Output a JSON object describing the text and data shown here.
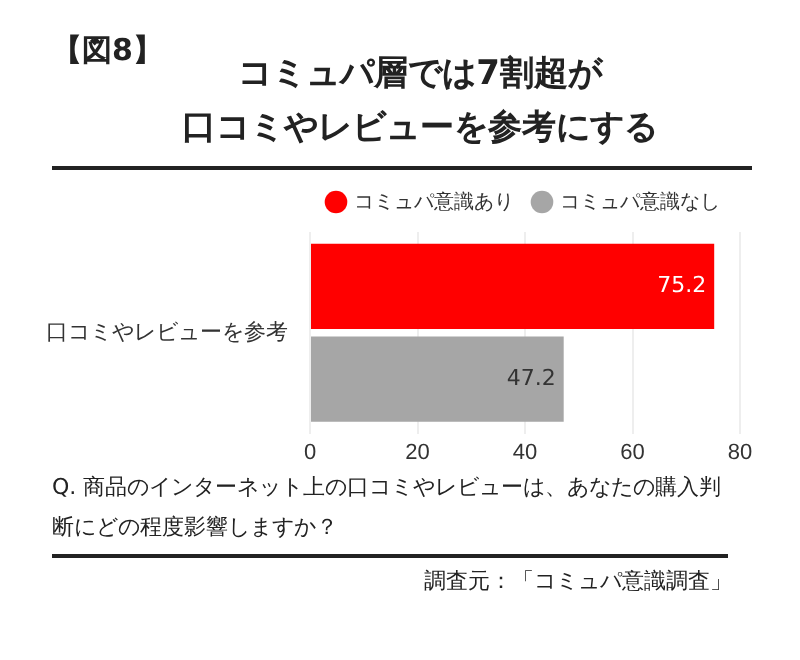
{
  "chart_data": {
    "type": "bar",
    "orientation": "horizontal",
    "title": "コミュパ層では7割超が",
    "subtitle": "口コミやレビューを参考にする",
    "categories": [
      "口コミやレビューを参考"
    ],
    "series": [
      {
        "name": "コミュパ意識あり",
        "color": "#ff0000",
        "values": [
          75.2
        ]
      },
      {
        "name": "コミュパ意識なし",
        "color": "#a6a6a6",
        "values": [
          47.2
        ]
      }
    ],
    "xlim": [
      0,
      80
    ],
    "xticks": [
      0,
      20,
      40,
      60,
      80
    ],
    "grid": "x",
    "legend": "top right",
    "data_labels": true,
    "annotations": [
      "【図8】",
      "Q. 商品のインターネット上の口コミやレビューは、あなたの購入判断にどの程度影響しますか？",
      "調査元：「コミュパ意識調査」"
    ]
  }
}
